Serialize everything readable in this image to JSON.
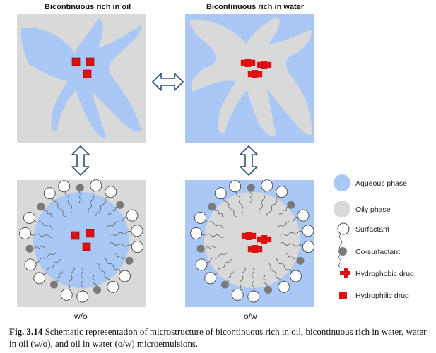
{
  "panels": {
    "top_left_title": "Bicontinuous rich in oil",
    "top_right_title": "Bicontinuous rich in water",
    "bottom_left_label": "w/o",
    "bottom_right_label": "o/w"
  },
  "legend": {
    "aqueous": "Aqueous phase",
    "oily": "Oily phase",
    "surfactant": "Surfactant",
    "cosurfactant": "Co-surfactant",
    "hydrophobic": "Hydrophobic drug",
    "hydrophilic": "Hydrophilic drug"
  },
  "caption": {
    "number": "Fig. 3.14",
    "text": "Schematic representation of microstructure of bicontinuous rich in oil, bicontinuous rich in water, water in oil (w/o), and oil in water (o/w) microemulsions."
  },
  "colors": {
    "aqueous": "#a9c8f5",
    "oily": "#d9d9d9",
    "drug": "#dd1111",
    "arrow": "#2f4f7f",
    "cosurfactant": "#7a7a7a"
  }
}
